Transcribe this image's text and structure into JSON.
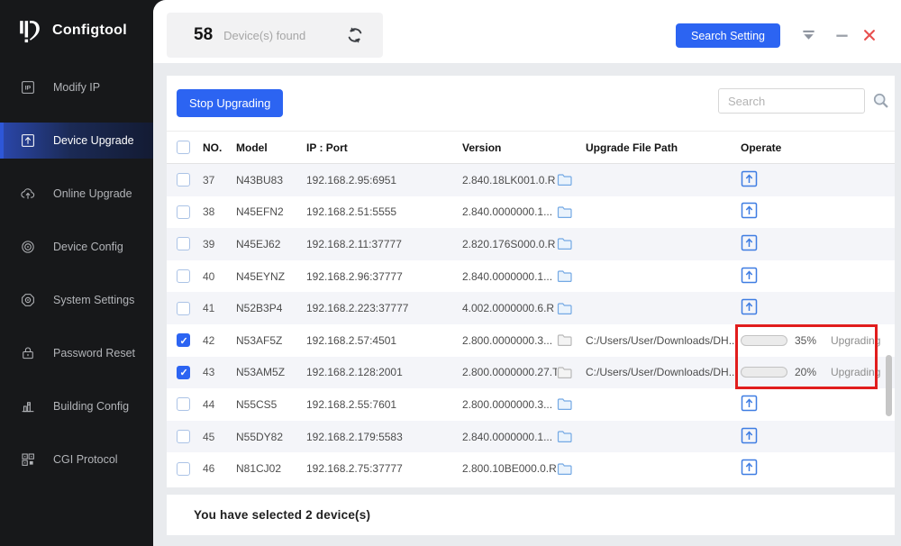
{
  "brand": {
    "name": "Configtool"
  },
  "sidebar": {
    "items": [
      {
        "id": "modify-ip",
        "label": "Modify IP",
        "active": false
      },
      {
        "id": "device-upgrade",
        "label": "Device Upgrade",
        "active": true
      },
      {
        "id": "online-upgrade",
        "label": "Online Upgrade",
        "active": false
      },
      {
        "id": "device-config",
        "label": "Device Config",
        "active": false
      },
      {
        "id": "system-settings",
        "label": "System Settings",
        "active": false
      },
      {
        "id": "password-reset",
        "label": "Password Reset",
        "active": false
      },
      {
        "id": "building-config",
        "label": "Building Config",
        "active": false
      },
      {
        "id": "cgi-protocol",
        "label": "CGI Protocol",
        "active": false
      }
    ]
  },
  "topbar": {
    "device_count": "58",
    "device_count_label": "Device(s) found",
    "search_setting_label": "Search Setting"
  },
  "toolbar": {
    "stop_upgrading_label": "Stop Upgrading",
    "search_placeholder": "Search"
  },
  "table": {
    "headers": {
      "no": "NO.",
      "model": "Model",
      "ip_port": "IP : Port",
      "version": "Version",
      "upgrade_file_path": "Upgrade File Path",
      "operate": "Operate"
    },
    "rows": [
      {
        "no": "37",
        "model": "N43BU83",
        "ip_port": "192.168.2.95:6951",
        "version": "2.840.18LK001.0.R",
        "checked": false,
        "folder": "blue",
        "path": ""
      },
      {
        "no": "38",
        "model": "N45EFN2",
        "ip_port": "192.168.2.51:5555",
        "version": "2.840.0000000.1...",
        "checked": false,
        "folder": "blue",
        "path": ""
      },
      {
        "no": "39",
        "model": "N45EJ62",
        "ip_port": "192.168.2.11:37777",
        "version": "2.820.176S000.0.R",
        "checked": false,
        "folder": "blue",
        "path": ""
      },
      {
        "no": "40",
        "model": "N45EYNZ",
        "ip_port": "192.168.2.96:37777",
        "version": "2.840.0000000.1...",
        "checked": false,
        "folder": "blue",
        "path": ""
      },
      {
        "no": "41",
        "model": "N52B3P4",
        "ip_port": "192.168.2.223:37777",
        "version": "4.002.0000000.6.R",
        "checked": false,
        "folder": "blue",
        "path": ""
      },
      {
        "no": "42",
        "model": "N53AF5Z",
        "ip_port": "192.168.2.57:4501",
        "version": "2.800.0000000.3...",
        "checked": true,
        "folder": "gray",
        "path": "C:/Users/User/Downloads/DH...",
        "progress": 35,
        "progress_label": "35%",
        "status": "Upgrading"
      },
      {
        "no": "43",
        "model": "N53AM5Z",
        "ip_port": "192.168.2.128:2001",
        "version": "2.800.0000000.27.T",
        "checked": true,
        "folder": "gray",
        "path": "C:/Users/User/Downloads/DH...",
        "progress": 20,
        "progress_label": "20%",
        "status": "Upgrading"
      },
      {
        "no": "44",
        "model": "N55CS5",
        "ip_port": "192.168.2.55:7601",
        "version": "2.800.0000000.3...",
        "checked": false,
        "folder": "blue",
        "path": ""
      },
      {
        "no": "45",
        "model": "N55DY82",
        "ip_port": "192.168.2.179:5583",
        "version": "2.840.0000000.1...",
        "checked": false,
        "folder": "blue",
        "path": ""
      },
      {
        "no": "46",
        "model": "N81CJ02",
        "ip_port": "192.168.2.75:37777",
        "version": "2.800.10BE000.0.R",
        "checked": false,
        "folder": "blue",
        "path": ""
      }
    ]
  },
  "footer": {
    "selection_text": "You have selected 2  device(s)"
  },
  "colors": {
    "accent": "#2c64f2",
    "highlight_border": "#e11d1d",
    "sidebar_bg": "#17181a"
  }
}
